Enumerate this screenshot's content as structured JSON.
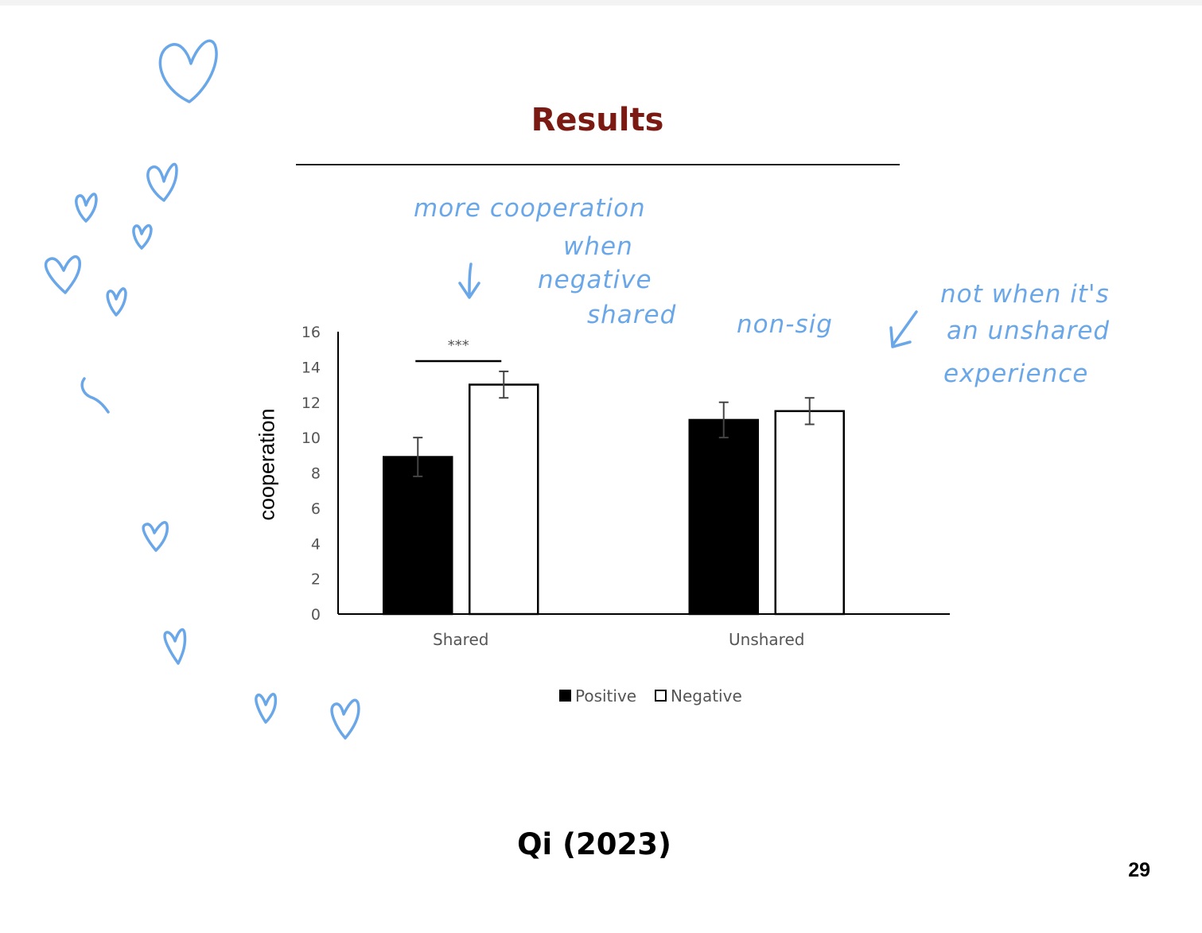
{
  "slide": {
    "title": "Results",
    "citation": "Qi (2023)",
    "page_number": "29"
  },
  "annotations": {
    "note_1": [
      "more cooperation",
      "when",
      "negative",
      "shared"
    ],
    "note_2": "non-sig",
    "note_3": [
      "not when it's",
      "an unshared",
      "experience"
    ],
    "ink_color": "#6aa7e8"
  },
  "chart_data": {
    "type": "bar",
    "categories": [
      "Shared",
      "Unshared"
    ],
    "series": [
      {
        "name": "Positive",
        "values": [
          8.9,
          11.0
        ],
        "errors": [
          1.1,
          1.0
        ],
        "color": "#000000"
      },
      {
        "name": "Negative",
        "values": [
          13.0,
          11.5
        ],
        "errors": [
          0.75,
          0.75
        ],
        "color": "#ffffff"
      }
    ],
    "ylabel": "cooperation",
    "xlabel": "",
    "ylim": [
      0,
      16
    ],
    "yticks": [
      0,
      2,
      4,
      6,
      8,
      10,
      12,
      14,
      16
    ],
    "grid": false,
    "legend_position": "bottom",
    "significance": {
      "category": "Shared",
      "label": "***"
    }
  }
}
